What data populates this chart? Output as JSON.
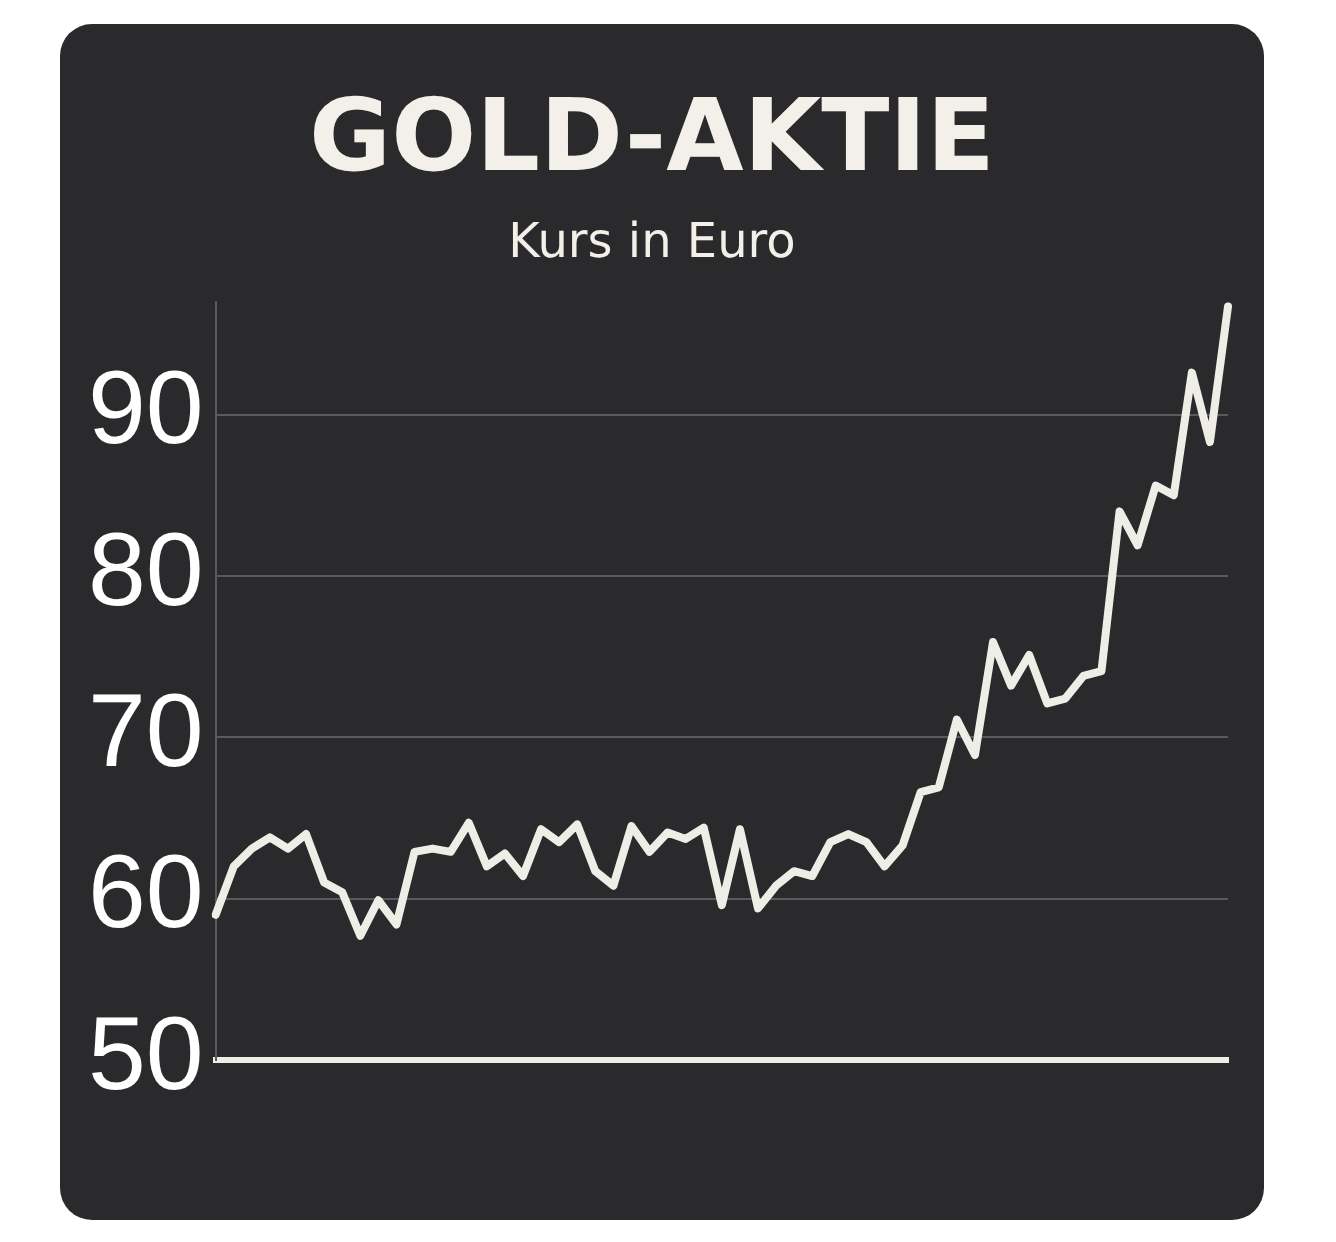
{
  "chart_data": {
    "type": "line",
    "title": "GOLD-AKTIE",
    "subtitle": "Kurs in Euro",
    "categories": [
      null,
      null,
      null,
      null,
      null,
      null,
      null,
      null,
      null,
      null,
      null,
      null,
      null,
      null,
      null,
      null,
      null,
      null,
      null,
      null,
      null,
      null,
      null,
      null,
      null,
      null,
      null,
      null,
      null,
      null,
      null,
      null,
      null,
      null,
      null,
      null,
      null,
      null,
      null,
      null,
      null,
      null,
      null,
      null,
      null,
      null,
      null,
      null,
      null,
      null,
      null,
      null,
      null,
      null,
      null,
      null,
      null
    ],
    "series": [
      {
        "color": "#efeee6",
        "values": [
          59.0,
          62.0,
          63.1,
          63.8,
          63.1,
          64.0,
          61.0,
          60.4,
          57.7,
          59.9,
          58.4,
          62.9,
          63.1,
          62.9,
          64.7,
          62.0,
          62.8,
          61.4,
          64.3,
          63.5,
          64.6,
          61.7,
          60.8,
          64.5,
          62.9,
          64.1,
          63.7,
          64.4,
          59.6,
          64.3,
          59.4,
          60.8,
          61.7,
          61.4,
          63.5,
          64.0,
          63.5,
          62.0,
          63.3,
          66.6,
          66.9,
          71.1,
          68.9,
          75.9,
          73.2,
          75.1,
          72.1,
          72.4,
          73.8,
          74.1,
          84.0,
          81.9,
          85.6,
          85.0,
          92.6,
          88.3,
          96.7
        ]
      }
    ],
    "ylim": [
      50,
      97
    ],
    "yticks": [
      50,
      60,
      70,
      80,
      90
    ],
    "grid": "y"
  }
}
